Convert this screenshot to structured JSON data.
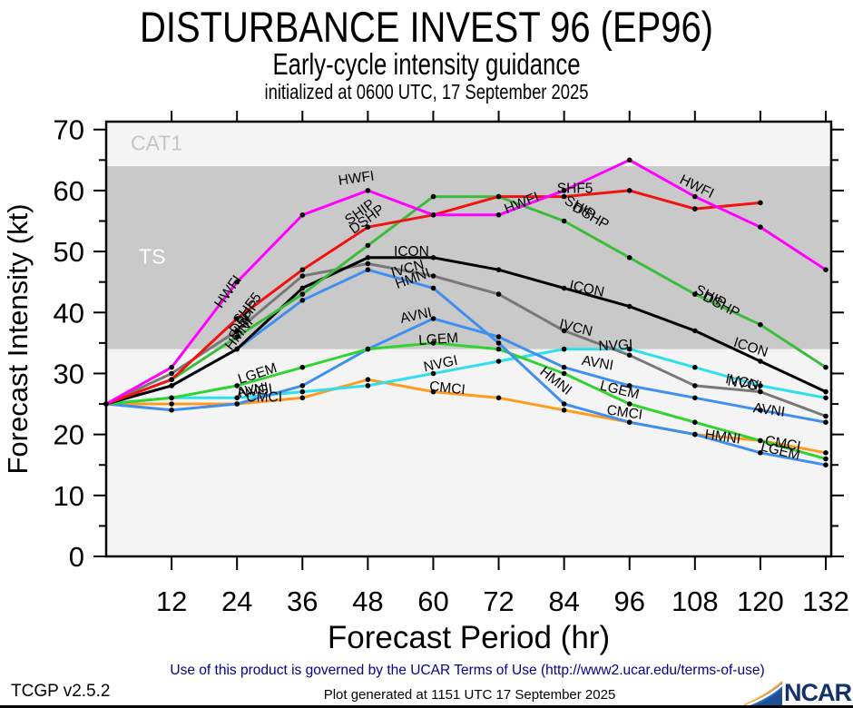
{
  "header": {
    "title": "DISTURBANCE INVEST 96 (EP96)",
    "subtitle": "Early-cycle intensity guidance",
    "init_line": "initialized at 0600 UTC, 17 September 2025"
  },
  "chart_data": {
    "type": "line",
    "title": "DISTURBANCE INVEST 96 (EP96)",
    "subtitle": "Early-cycle intensity guidance",
    "xlabel": "Forecast Period (hr)",
    "ylabel": "Forecast Intensity (kt)",
    "x_hours": [
      0,
      12,
      24,
      36,
      48,
      60,
      72,
      84,
      96,
      108,
      120,
      132
    ],
    "xticks": [
      12,
      24,
      36,
      48,
      60,
      72,
      84,
      96,
      108,
      120,
      132
    ],
    "yticks": [
      0,
      10,
      20,
      30,
      40,
      50,
      60,
      70
    ],
    "y_minor_step": 5,
    "xlim": [
      0,
      133
    ],
    "ylim": [
      0,
      71.3
    ],
    "grid": false,
    "legend_position": "inline-labels",
    "plot_bg": "#f4f4f4",
    "frame_color": "#000000",
    "marker_color": "#000000",
    "bands": [
      {
        "label": "TS",
        "from": 34,
        "to": 64,
        "color": "#c9c9c9",
        "label_color": "#ffffff",
        "label_t": 6,
        "label_kt": 48
      },
      {
        "label": "CAT1",
        "from": 64,
        "to": 71.3,
        "color": "#f4f4f4",
        "label_color": "#c6c6c6",
        "label_t": 4.5,
        "label_kt": 66.6
      }
    ],
    "series": [
      {
        "name": "CMCI",
        "color": "#ff9c20",
        "values": [
          25,
          25,
          25,
          26,
          29,
          27,
          26,
          24,
          22,
          20,
          19,
          17
        ]
      },
      {
        "name": "NVGI",
        "color": "#2ee0ee",
        "values": [
          25,
          26,
          26,
          27,
          28,
          30,
          32,
          34,
          34,
          31,
          28,
          26
        ]
      },
      {
        "name": "AVNI",
        "color": "#3f8fee",
        "values": [
          25,
          24,
          25,
          28,
          34,
          39,
          36,
          31,
          28,
          26,
          24,
          22
        ]
      },
      {
        "name": "LGEM",
        "color": "#31d331",
        "values": [
          25,
          26,
          28,
          31,
          34,
          35,
          34,
          30,
          25,
          22,
          19,
          16
        ]
      },
      {
        "name": "HMNI",
        "color": "#3f8fee",
        "values": [
          25,
          28,
          34,
          42,
          47,
          44,
          35,
          25,
          22,
          20,
          17,
          15
        ]
      },
      {
        "name": "IVCN",
        "color": "#787878",
        "values": [
          25,
          30,
          37,
          46,
          48,
          46,
          43,
          37,
          33,
          28,
          27,
          23
        ]
      },
      {
        "name": "ICON",
        "color": "#000000",
        "values": [
          25,
          28,
          34,
          44,
          49,
          49,
          47,
          44,
          41,
          37,
          32,
          27
        ]
      },
      {
        "name": "SHIP",
        "color": "#3cbc3c",
        "values": [
          25,
          29,
          36,
          43,
          51,
          59,
          59,
          55,
          49,
          43,
          38,
          31
        ]
      },
      {
        "name": "SHF5",
        "color": "#f11212",
        "values": [
          25,
          29,
          39,
          47,
          54,
          56,
          59,
          59,
          60,
          57,
          58,
          null
        ]
      },
      {
        "name": "HWFI",
        "color": "#ff00ff",
        "values": [
          25,
          31,
          45,
          56,
          60,
          56,
          56,
          60,
          65,
          59,
          54,
          47
        ]
      }
    ],
    "line_labels": [
      {
        "text": "HWFI",
        "t": 23,
        "kt": 43,
        "rot": -55
      },
      {
        "text": "HWFI",
        "t": 46,
        "kt": 61.3,
        "rot": -8
      },
      {
        "text": "HWFI",
        "t": 76.5,
        "kt": 57.3,
        "rot": -22
      },
      {
        "text": "HWFI",
        "t": 108,
        "kt": 60,
        "rot": 26
      },
      {
        "text": "SHF5",
        "t": 26.5,
        "kt": 40.2,
        "rot": -52
      },
      {
        "text": "DSHP",
        "t": 26,
        "kt": 38.8,
        "rot": -52
      },
      {
        "text": "SHIP",
        "t": 25.5,
        "kt": 37.4,
        "rot": -52
      },
      {
        "text": "HMNI",
        "t": 25,
        "kt": 36,
        "rot": -52
      },
      {
        "text": "SHIP",
        "t": 47,
        "kt": 55.9,
        "rot": -36
      },
      {
        "text": "DSHP",
        "t": 48.3,
        "kt": 54.7,
        "rot": -36
      },
      {
        "text": "SHF5",
        "t": 86,
        "kt": 59.6,
        "rot": 0
      },
      {
        "text": "SHIP",
        "t": 86.5,
        "kt": 56.6,
        "rot": 30
      },
      {
        "text": "DSHP",
        "t": 88.5,
        "kt": 55.2,
        "rot": 30
      },
      {
        "text": "SHIP",
        "t": 110.5,
        "kt": 42,
        "rot": 28
      },
      {
        "text": "DSHP",
        "t": 112.5,
        "kt": 40.6,
        "rot": 28
      },
      {
        "text": "ICON",
        "t": 56,
        "kt": 49.3,
        "rot": 0
      },
      {
        "text": "ICON",
        "t": 88,
        "kt": 43.2,
        "rot": 12
      },
      {
        "text": "ICON",
        "t": 118,
        "kt": 33.6,
        "rot": 18
      },
      {
        "text": "IVCN",
        "t": 55.5,
        "kt": 46.5,
        "rot": -16
      },
      {
        "text": "IVCN",
        "t": 86,
        "kt": 36.8,
        "rot": 14
      },
      {
        "text": "IVCN",
        "t": 116.5,
        "kt": 27.9,
        "rot": 12
      },
      {
        "text": "HMNI",
        "t": 56.5,
        "kt": 44.9,
        "rot": -20
      },
      {
        "text": "HMNI",
        "t": 82,
        "kt": 28.2,
        "rot": 38
      },
      {
        "text": "HMNI",
        "t": 113,
        "kt": 18.9,
        "rot": 8
      },
      {
        "text": "AVNI",
        "t": 27,
        "kt": 26.6,
        "rot": -10
      },
      {
        "text": "AVNI",
        "t": 57,
        "kt": 38.8,
        "rot": -12
      },
      {
        "text": "AVNI",
        "t": 90,
        "kt": 31,
        "rot": 10
      },
      {
        "text": "AVNI",
        "t": 121.5,
        "kt": 23.3,
        "rot": 8
      },
      {
        "text": "LGEM",
        "t": 28,
        "kt": 29.3,
        "rot": -18
      },
      {
        "text": "LGEM",
        "t": 61,
        "kt": 34.9,
        "rot": -4
      },
      {
        "text": "LGEM",
        "t": 94,
        "kt": 26.6,
        "rot": 14
      },
      {
        "text": "LGEM",
        "t": 123.5,
        "kt": 16.6,
        "rot": 14
      },
      {
        "text": "NVGI",
        "t": 27.5,
        "kt": 26.4,
        "rot": -8
      },
      {
        "text": "NVGI",
        "t": 61.5,
        "kt": 30.9,
        "rot": -12
      },
      {
        "text": "NVGI",
        "t": 93.5,
        "kt": 33.9,
        "rot": -3
      },
      {
        "text": "NVGI",
        "t": 117,
        "kt": 27.6,
        "rot": 10
      },
      {
        "text": "CMCI",
        "t": 29,
        "kt": 25.4,
        "rot": 0
      },
      {
        "text": "CMCI",
        "t": 62.5,
        "kt": 26.9,
        "rot": 6
      },
      {
        "text": "CMCI",
        "t": 95,
        "kt": 22.9,
        "rot": 8
      },
      {
        "text": "CMCI",
        "t": 124,
        "kt": 17.8,
        "rot": 10
      }
    ]
  },
  "footer": {
    "terms": "Use of this product is governed by the UCAR Terms of Use (http://www2.ucar.edu/terms-of-use)",
    "terms_color": "#00008b",
    "version": "TCGP v2.5.2",
    "generated": "Plot generated at 1151 UTC   17 September 2025"
  },
  "branding": {
    "logo_text": "NCAR"
  }
}
